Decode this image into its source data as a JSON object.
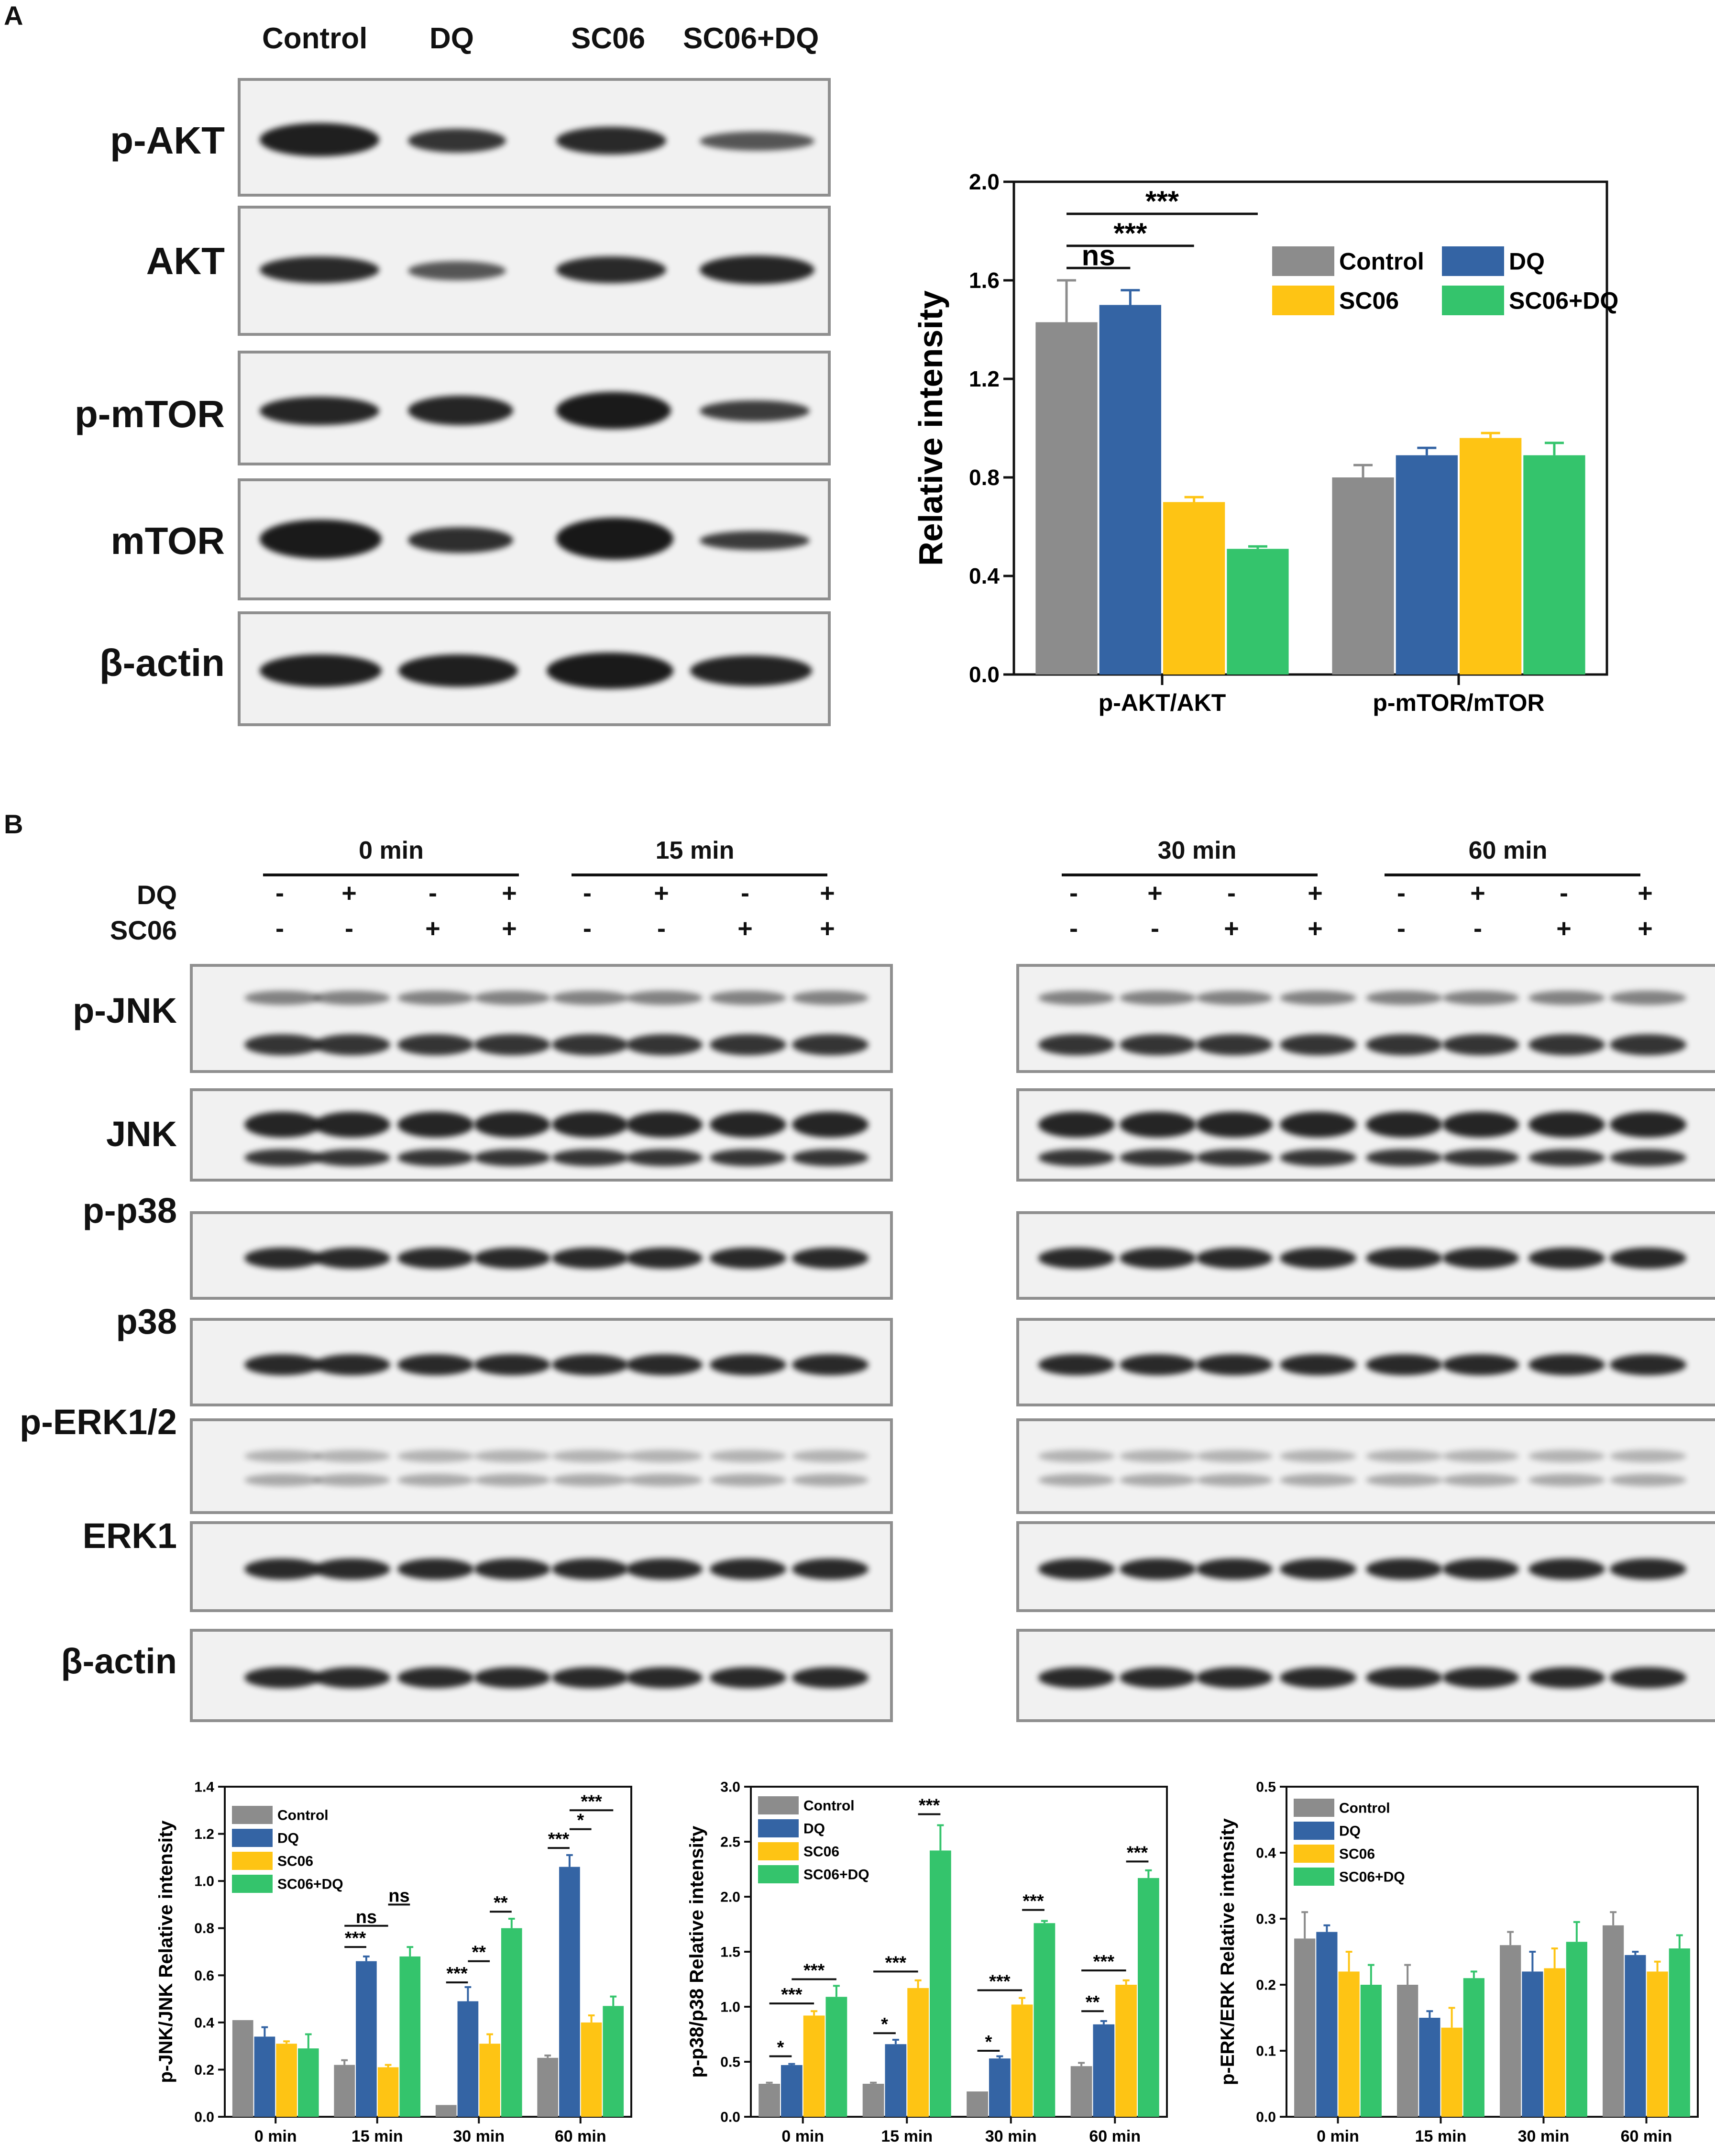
{
  "panel_a": {
    "letter": "A",
    "lanes": [
      "Control",
      "DQ",
      "SC06",
      "SC06+DQ"
    ],
    "rows": [
      "p-AKT",
      "AKT",
      "p-mTOR",
      "mTOR",
      "β-actin"
    ]
  },
  "panel_b": {
    "letter": "B",
    "times": [
      "0 min",
      "15 min",
      "30 min",
      "60 min"
    ],
    "treat_labels": [
      "DQ",
      "SC06"
    ],
    "dq_signs": [
      "-",
      "+",
      "-",
      "+",
      "-",
      "+",
      "-",
      "+",
      "-",
      "+",
      "-",
      "+",
      "-",
      "+",
      "-",
      "+"
    ],
    "sc06_signs": [
      "-",
      "-",
      "+",
      "+",
      "-",
      "-",
      "+",
      "+",
      "-",
      "-",
      "+",
      "+",
      "-",
      "-",
      "+",
      "+"
    ],
    "rows": [
      "p-JNK",
      "JNK",
      "p-p38",
      "p38",
      "p-ERK1/2",
      "ERK1",
      "β-actin"
    ]
  },
  "colors": {
    "Control": "#8c8c8c",
    "DQ": "#3464a4",
    "SC06": "#fec414",
    "SC06+DQ": "#34c46c"
  },
  "chart_data": [
    {
      "type": "bar",
      "ylabel": "Relative intensity",
      "xlabel": "",
      "ylim": [
        0.0,
        2.0
      ],
      "yticks": [
        "0.0",
        "0.4",
        "0.8",
        "1.2",
        "1.6",
        "2.0"
      ],
      "categories": [
        "p-AKT/AKT",
        "p-mTOR/mTOR"
      ],
      "series": [
        {
          "name": "Control",
          "values": [
            1.43,
            0.8
          ],
          "errors": [
            0.17,
            0.05
          ]
        },
        {
          "name": "DQ",
          "values": [
            1.5,
            0.89
          ],
          "errors": [
            0.06,
            0.03
          ]
        },
        {
          "name": "SC06",
          "values": [
            0.7,
            0.96
          ],
          "errors": [
            0.02,
            0.02
          ]
        },
        {
          "name": "SC06+DQ",
          "values": [
            0.51,
            0.89
          ],
          "errors": [
            0.01,
            0.05
          ]
        }
      ],
      "legend_position": "top-right",
      "annotations": [
        "ns",
        "***",
        "***"
      ]
    },
    {
      "type": "bar",
      "ylabel": "p-JNK/JNK Relative intensity",
      "xlabel": "",
      "ylim": [
        0.0,
        1.4
      ],
      "yticks": [
        "0.0",
        "0.2",
        "0.4",
        "0.6",
        "0.8",
        "1.0",
        "1.2",
        "1.4"
      ],
      "categories": [
        "0 min",
        "15 min",
        "30 min",
        "60 min"
      ],
      "series": [
        {
          "name": "Control",
          "values": [
            0.41,
            0.22,
            0.05,
            0.25
          ],
          "errors": [
            0.0,
            0.02,
            0.0,
            0.01
          ]
        },
        {
          "name": "DQ",
          "values": [
            0.34,
            0.66,
            0.49,
            1.06
          ],
          "errors": [
            0.04,
            0.02,
            0.06,
            0.05
          ]
        },
        {
          "name": "SC06",
          "values": [
            0.31,
            0.21,
            0.31,
            0.4
          ],
          "errors": [
            0.01,
            0.01,
            0.04,
            0.03
          ]
        },
        {
          "name": "SC06+DQ",
          "values": [
            0.29,
            0.68,
            0.8,
            0.47
          ],
          "errors": [
            0.06,
            0.04,
            0.04,
            0.04
          ]
        }
      ],
      "legend_position": "top-left",
      "annotations": [
        "***",
        "ns",
        "ns",
        "***",
        "**",
        "**",
        "***",
        "*",
        "*",
        "***"
      ]
    },
    {
      "type": "bar",
      "ylabel": "p-p38/p38 Relative intensity",
      "xlabel": "",
      "ylim": [
        0.0,
        3.0
      ],
      "yticks": [
        "0.0",
        "0.5",
        "1.0",
        "1.5",
        "2.0",
        "2.5",
        "3.0"
      ],
      "categories": [
        "0 min",
        "15 min",
        "30 min",
        "60 min"
      ],
      "series": [
        {
          "name": "Control",
          "values": [
            0.3,
            0.3,
            0.23,
            0.46
          ],
          "errors": [
            0.01,
            0.01,
            0.0,
            0.03
          ]
        },
        {
          "name": "DQ",
          "values": [
            0.47,
            0.66,
            0.53,
            0.84
          ],
          "errors": [
            0.01,
            0.04,
            0.02,
            0.03
          ]
        },
        {
          "name": "SC06",
          "values": [
            0.92,
            1.17,
            1.02,
            1.2
          ],
          "errors": [
            0.04,
            0.07,
            0.06,
            0.04
          ]
        },
        {
          "name": "SC06+DQ",
          "values": [
            1.09,
            2.42,
            1.76,
            2.17
          ],
          "errors": [
            0.1,
            0.23,
            0.02,
            0.07
          ]
        }
      ],
      "legend_position": "top-left",
      "annotations": [
        "*",
        "***",
        "***",
        "*",
        "***",
        "***",
        "*",
        "***",
        "***",
        "**",
        "***",
        "***"
      ]
    },
    {
      "type": "bar",
      "ylabel": "p-ERK/ERK Relative intensity",
      "xlabel": "",
      "ylim": [
        0.0,
        0.5
      ],
      "yticks": [
        "0.0",
        "0.1",
        "0.2",
        "0.3",
        "0.4",
        "0.5"
      ],
      "categories": [
        "0 min",
        "15 min",
        "30 min",
        "60 min"
      ],
      "series": [
        {
          "name": "Control",
          "values": [
            0.27,
            0.2,
            0.26,
            0.29
          ],
          "errors": [
            0.04,
            0.03,
            0.02,
            0.02
          ]
        },
        {
          "name": "DQ",
          "values": [
            0.28,
            0.15,
            0.22,
            0.245
          ],
          "errors": [
            0.01,
            0.01,
            0.03,
            0.005
          ]
        },
        {
          "name": "SC06",
          "values": [
            0.22,
            0.135,
            0.225,
            0.22
          ],
          "errors": [
            0.03,
            0.03,
            0.03,
            0.015
          ]
        },
        {
          "name": "SC06+DQ",
          "values": [
            0.2,
            0.21,
            0.265,
            0.255
          ],
          "errors": [
            0.03,
            0.01,
            0.03,
            0.02
          ]
        }
      ],
      "legend_position": "top-left",
      "annotations": []
    }
  ]
}
